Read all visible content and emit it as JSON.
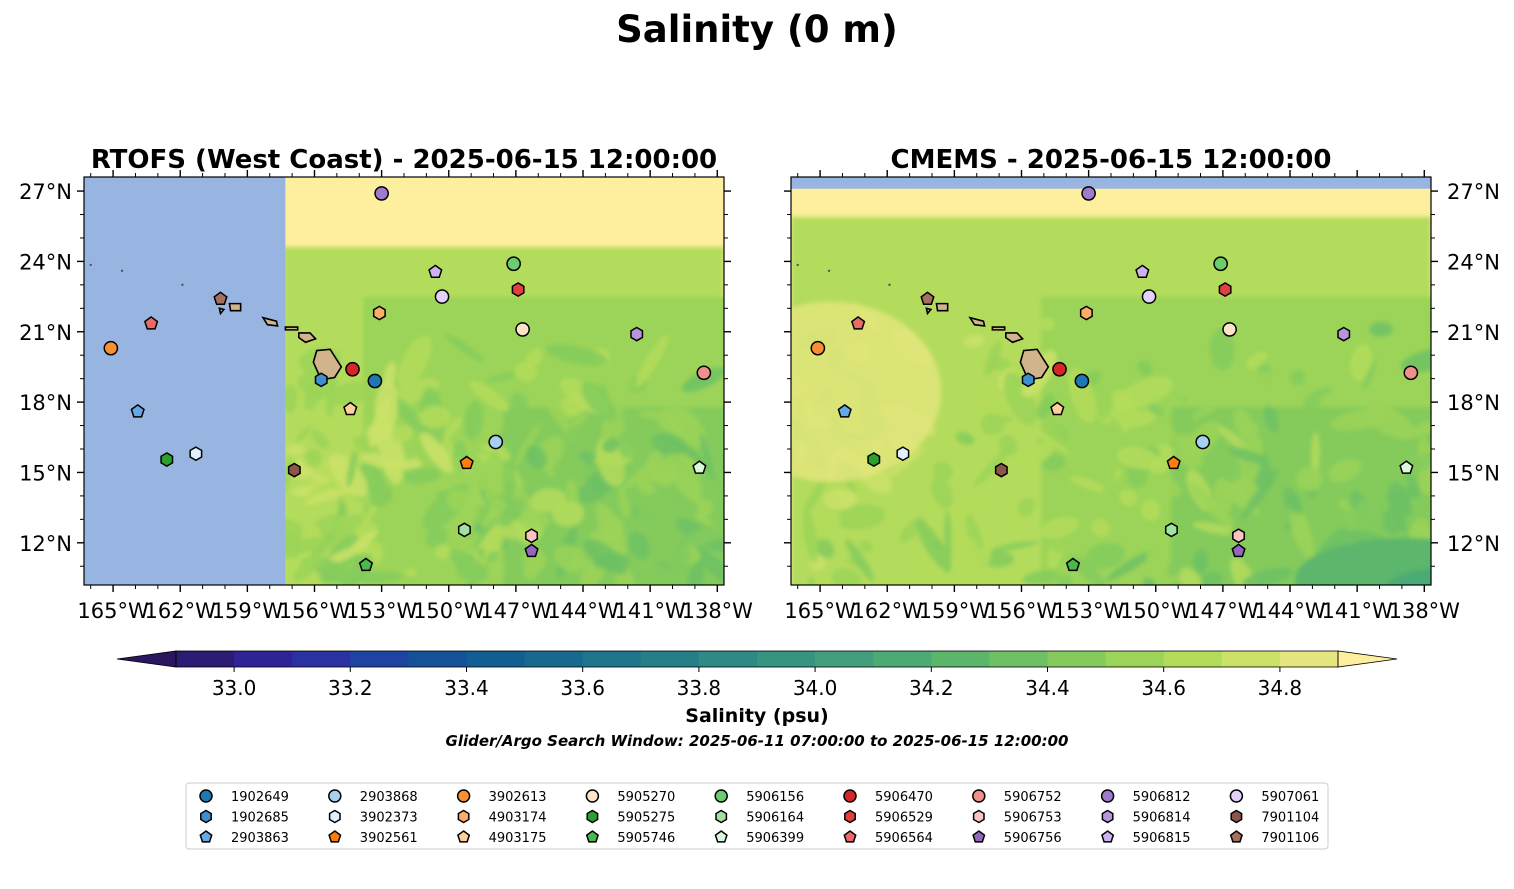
{
  "figure": {
    "suptitle": "Salinity (0 m)",
    "search_window": "Glider/Argo Search Window: 2025-06-11 07:00:00 to 2025-06-15 12:00:00"
  },
  "chart_data": [
    {
      "type": "heatmap",
      "title": "RTOFS (West Coast) - 2025-06-15 12:00:00",
      "xlim": [
        -166.3,
        -137.7
      ],
      "ylim": [
        10.2,
        27.6
      ],
      "x_ticks": [
        -165,
        -162,
        -159,
        -156,
        -153,
        -150,
        -147,
        -144,
        -141,
        -138
      ],
      "x_tick_labels": [
        "165°W",
        "162°W",
        "159°W",
        "156°W",
        "153°W",
        "150°W",
        "147°W",
        "144°W",
        "141°W",
        "138°W"
      ],
      "y_ticks": [
        12,
        15,
        18,
        21,
        24,
        27
      ],
      "y_tick_labels": [
        "12°N",
        "15°N",
        "18°N",
        "21°N",
        "24°N",
        "27°N"
      ],
      "y_axis_side": "left",
      "no_data_west_of": -157.3,
      "dominant_salinity_psu": [
        34.4,
        34.9
      ],
      "grid": false
    },
    {
      "type": "heatmap",
      "title": "CMEMS - 2025-06-15 12:00:00",
      "xlim": [
        -166.3,
        -137.7
      ],
      "ylim": [
        10.2,
        27.6
      ],
      "x_ticks": [
        -165,
        -162,
        -159,
        -156,
        -153,
        -150,
        -147,
        -144,
        -141,
        -138
      ],
      "x_tick_labels": [
        "165°W",
        "162°W",
        "159°W",
        "156°W",
        "153°W",
        "150°W",
        "147°W",
        "144°W",
        "141°W",
        "138°W"
      ],
      "y_ticks": [
        12,
        15,
        18,
        21,
        24,
        27
      ],
      "y_tick_labels": [
        "12°N",
        "15°N",
        "18°N",
        "21°N",
        "24°N",
        "27°N"
      ],
      "y_axis_side": "right",
      "no_data_north_of": 27.1,
      "dominant_salinity_psu": [
        34.4,
        34.9
      ],
      "grid": false
    }
  ],
  "colorbar": {
    "label": "Salinity (psu)",
    "vmin": 32.9,
    "vmax": 34.9,
    "step": 0.1,
    "extend": "both",
    "ticks": [
      33.0,
      33.2,
      33.4,
      33.6,
      33.8,
      34.0,
      34.2,
      34.4,
      34.6,
      34.8
    ],
    "tick_labels": [
      "33.0",
      "33.2",
      "33.4",
      "33.6",
      "33.8",
      "34.0",
      "34.2",
      "34.4",
      "34.6",
      "34.8"
    ],
    "colors": [
      "#2b1b73",
      "#2e2397",
      "#2a31a0",
      "#1f43a1",
      "#145199",
      "#115f92",
      "#176a8e",
      "#1e758b",
      "#267f88",
      "#2f8a85",
      "#369581",
      "#41a07b",
      "#4cab74",
      "#5bb66c",
      "#6dc164",
      "#84cb5c",
      "#9bd458",
      "#b4dc5b",
      "#cbe269",
      "#e5e67e"
    ],
    "under_color": "#2a1760",
    "over_color": "#fdef9e"
  },
  "map_colors": {
    "nodata": "#98b4e0",
    "high_salinity": "#fdef9e",
    "land": "#d2b48c"
  },
  "observations": [
    {
      "id": "1902649",
      "marker": "circle",
      "color": "#1f77b4",
      "lon": -153.3,
      "lat": 18.9
    },
    {
      "id": "1902685",
      "marker": "hexagon",
      "color": "#3f8fcf",
      "lon": -155.7,
      "lat": 18.95
    },
    {
      "id": "2903863",
      "marker": "pentagon",
      "color": "#65a8e3",
      "lon": -163.9,
      "lat": 17.6
    },
    {
      "id": "2903868",
      "marker": "circle",
      "color": "#a6d0f0",
      "lon": -147.9,
      "lat": 16.3
    },
    {
      "id": "3902373",
      "marker": "hexagon",
      "color": "#e1f0fc",
      "lon": -161.3,
      "lat": 15.8
    },
    {
      "id": "3902561",
      "marker": "pentagon",
      "color": "#ff7f0e",
      "lon": -149.2,
      "lat": 15.4
    },
    {
      "id": "3902613",
      "marker": "circle",
      "color": "#f98f32",
      "lon": -165.1,
      "lat": 20.3
    },
    {
      "id": "4903174",
      "marker": "hexagon",
      "color": "#fcae66",
      "lon": -153.1,
      "lat": 21.8
    },
    {
      "id": "4903175",
      "marker": "pentagon",
      "color": "#fdcf9a",
      "lon": -154.4,
      "lat": 17.7
    },
    {
      "id": "5905270",
      "marker": "circle",
      "color": "#fde4c8",
      "lon": -146.7,
      "lat": 21.1
    },
    {
      "id": "5905275",
      "marker": "hexagon",
      "color": "#2ca02c",
      "lon": -162.6,
      "lat": 15.55
    },
    {
      "id": "5905746",
      "marker": "pentagon",
      "color": "#4cb84c",
      "lon": -153.7,
      "lat": 11.05
    },
    {
      "id": "5906156",
      "marker": "circle",
      "color": "#6fcb6f",
      "lon": -147.1,
      "lat": 23.9
    },
    {
      "id": "5906164",
      "marker": "hexagon",
      "color": "#a3e0a3",
      "lon": -149.3,
      "lat": 12.55
    },
    {
      "id": "5906399",
      "marker": "pentagon",
      "color": "#dcf8dc",
      "lon": -138.8,
      "lat": 15.2
    },
    {
      "id": "5906470",
      "marker": "circle",
      "color": "#d62728",
      "lon": -154.3,
      "lat": 19.4
    },
    {
      "id": "5906529",
      "marker": "hexagon",
      "color": "#e0403f",
      "lon": -146.9,
      "lat": 22.8
    },
    {
      "id": "5906564",
      "marker": "pentagon",
      "color": "#ea6a68",
      "lon": -163.3,
      "lat": 21.35
    },
    {
      "id": "5906752",
      "marker": "circle",
      "color": "#f0908d",
      "lon": -138.6,
      "lat": 19.25
    },
    {
      "id": "5906753",
      "marker": "hexagon",
      "color": "#f9c4c2",
      "lon": -146.3,
      "lat": 12.3
    },
    {
      "id": "5906756",
      "marker": "pentagon",
      "color": "#9467bd",
      "lon": -146.3,
      "lat": 11.65
    },
    {
      "id": "5906812",
      "marker": "circle",
      "color": "#a07bcb",
      "lon": -153.0,
      "lat": 26.9
    },
    {
      "id": "5906814",
      "marker": "hexagon",
      "color": "#b896dc",
      "lon": -141.6,
      "lat": 20.9
    },
    {
      "id": "5906815",
      "marker": "pentagon",
      "color": "#cdb4ef",
      "lon": -150.6,
      "lat": 23.55
    },
    {
      "id": "5907061",
      "marker": "circle",
      "color": "#e2d1fb",
      "lon": -150.3,
      "lat": 22.5
    },
    {
      "id": "7901104",
      "marker": "hexagon",
      "color": "#8c564b",
      "lon": -156.9,
      "lat": 15.1
    },
    {
      "id": "7901106",
      "marker": "pentagon",
      "color": "#a6705e",
      "lon": -160.2,
      "lat": 22.4
    }
  ],
  "legend": {
    "location": "bottom",
    "columns": [
      [
        "1902649",
        "1902685",
        "2903863"
      ],
      [
        "2903868",
        "3902373",
        "3902561"
      ],
      [
        "3902613",
        "4903174",
        "4903175"
      ],
      [
        "5905270",
        "5905275",
        "5905746"
      ],
      [
        "5906156",
        "5906164",
        "5906399"
      ],
      [
        "5906470",
        "5906529",
        "5906564"
      ],
      [
        "5906752",
        "5906753",
        "5906756"
      ],
      [
        "5906812",
        "5906814",
        "5906815"
      ],
      [
        "5907061",
        "7901104",
        "7901106"
      ]
    ]
  }
}
